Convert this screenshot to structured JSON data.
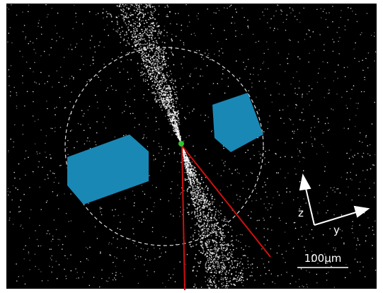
{
  "axes": {
    "vertical": "z",
    "horizontal": "y"
  },
  "scale_bar": {
    "label": "100μm"
  }
}
